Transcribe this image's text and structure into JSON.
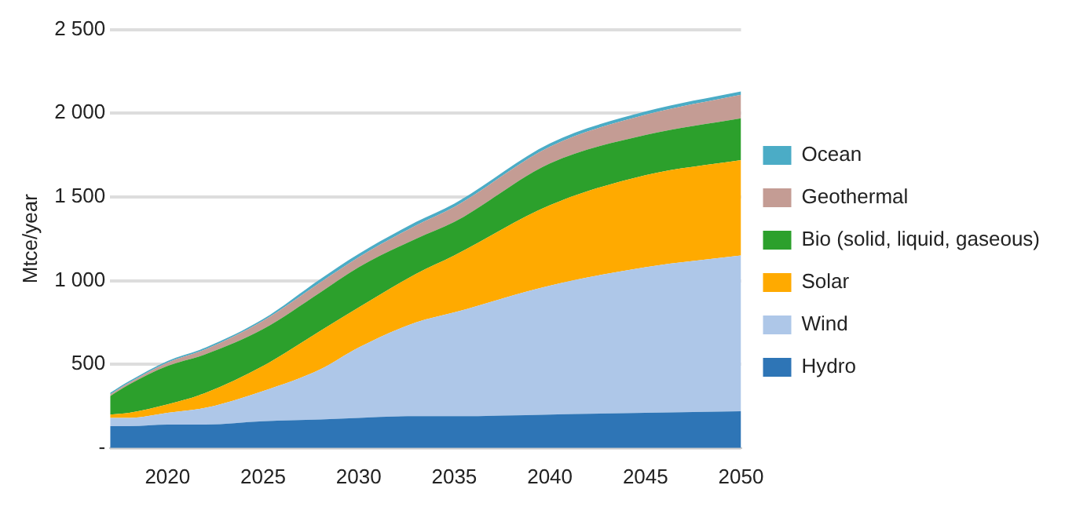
{
  "chart_data": {
    "type": "area",
    "stacked": true,
    "ylabel": "Mtce/year",
    "x": [
      2017,
      2018,
      2020,
      2022,
      2025,
      2028,
      2030,
      2033,
      2035,
      2040,
      2045,
      2050
    ],
    "series": [
      {
        "name": "Hydro",
        "color": "#2e75b6",
        "values": [
          130,
          130,
          140,
          140,
          160,
          170,
          180,
          190,
          190,
          200,
          210,
          220
        ]
      },
      {
        "name": "Wind",
        "color": "#aec7e8",
        "values": [
          50,
          50,
          70,
          100,
          180,
          300,
          420,
          560,
          620,
          770,
          870,
          930
        ]
      },
      {
        "name": "Solar",
        "color": "#ffaa00",
        "values": [
          20,
          30,
          50,
          90,
          150,
          230,
          240,
          290,
          340,
          480,
          550,
          570
        ]
      },
      {
        "name": "Bio (solid, liquid, gaseous)",
        "color": "#2ca02c",
        "values": [
          110,
          170,
          230,
          230,
          220,
          230,
          240,
          210,
          200,
          250,
          240,
          250
        ]
      },
      {
        "name": "Geothermal",
        "color": "#c49c94",
        "values": [
          10,
          10,
          20,
          30,
          50,
          60,
          60,
          80,
          90,
          100,
          120,
          140
        ]
      },
      {
        "name": "Ocean",
        "color": "#4bacc6",
        "values": [
          10,
          10,
          10,
          10,
          10,
          20,
          20,
          20,
          20,
          20,
          20,
          20
        ]
      }
    ],
    "xlim": [
      2017,
      2050
    ],
    "xticks": [
      2020,
      2025,
      2030,
      2035,
      2040,
      2045,
      2050
    ],
    "ylim": [
      0,
      2500
    ],
    "yticks": [
      {
        "value": 0,
        "label": "-"
      },
      500,
      {
        "value": 1000,
        "label": "1 000"
      },
      {
        "value": 1500,
        "label": "1 500"
      },
      {
        "value": 2000,
        "label": "2 000"
      },
      {
        "value": 2500,
        "label": "2 500"
      }
    ],
    "grid": "y",
    "legend": "right"
  }
}
